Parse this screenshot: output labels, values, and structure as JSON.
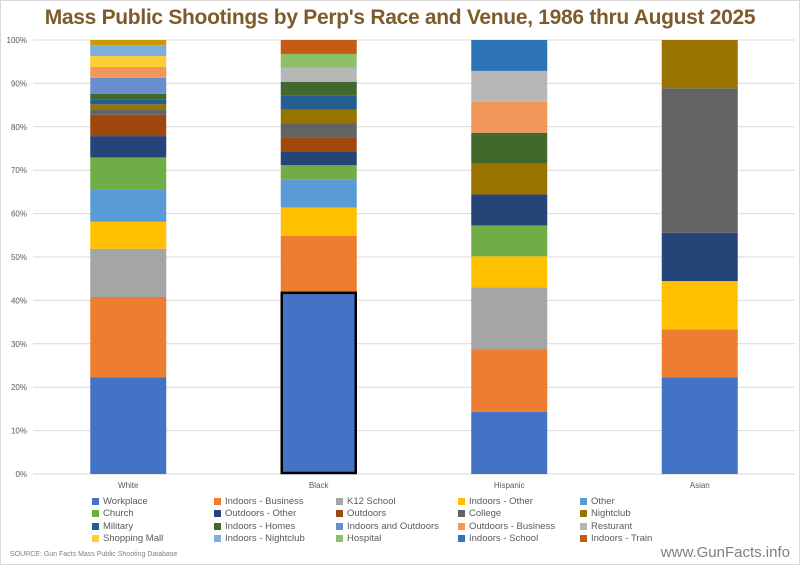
{
  "page": {
    "source_note": "SOURCE:  Gun Facts Mass Public Shooting Database",
    "website": "www.GunFacts.info"
  },
  "chart_data": {
    "type": "bar",
    "stacked": "percent",
    "title": "Mass Public Shootings by Perp's Race and Venue, 1986 thru August 2025",
    "xlabel": "",
    "ylabel": "",
    "ylim": [
      0,
      100
    ],
    "y_ticks": [
      "0%",
      "10%",
      "20%",
      "30%",
      "40%",
      "50%",
      "60%",
      "70%",
      "80%",
      "90%",
      "100%"
    ],
    "categories": [
      "White",
      "Black",
      "Hispanic",
      "Asian"
    ],
    "highlight": {
      "category": "Black",
      "series": "Workplace",
      "style": "black outline"
    },
    "grid": true,
    "legend_position": "bottom",
    "series": [
      {
        "name": "Workplace",
        "color": "#4472C4",
        "values": [
          22.2,
          41.9,
          14.3,
          22.2
        ]
      },
      {
        "name": "Indoors - Business",
        "color": "#ED7D31",
        "values": [
          18.5,
          12.9,
          14.3,
          11.1
        ]
      },
      {
        "name": "K12 School",
        "color": "#A5A5A5",
        "values": [
          11.1,
          0,
          14.3,
          0
        ]
      },
      {
        "name": "Indoors - Other",
        "color": "#FFC000",
        "values": [
          6.2,
          6.5,
          7.1,
          11.1
        ]
      },
      {
        "name": "Other",
        "color": "#5B9BD5",
        "values": [
          7.4,
          6.5,
          0,
          0
        ]
      },
      {
        "name": "Church",
        "color": "#70AD47",
        "values": [
          7.4,
          3.2,
          7.1,
          0
        ]
      },
      {
        "name": "Outdoors - Other",
        "color": "#264478",
        "values": [
          4.9,
          3.2,
          7.1,
          11.1
        ]
      },
      {
        "name": "Outdoors",
        "color": "#9E480E",
        "values": [
          4.9,
          3.2,
          0,
          0
        ]
      },
      {
        "name": "College",
        "color": "#636363",
        "values": [
          1.2,
          3.2,
          0,
          33.3
        ]
      },
      {
        "name": "Nightclub",
        "color": "#997300",
        "values": [
          1.2,
          3.2,
          7.1,
          11.1
        ]
      },
      {
        "name": "Military",
        "color": "#255E91",
        "values": [
          1.2,
          3.2,
          0,
          0
        ]
      },
      {
        "name": "Indoors - Homes",
        "color": "#43682B",
        "values": [
          1.2,
          3.2,
          7.1,
          0
        ]
      },
      {
        "name": "Indoors and Outdoors",
        "color": "#698ED0",
        "values": [
          3.7,
          0,
          0,
          0
        ]
      },
      {
        "name": "Outdoors - Business",
        "color": "#F1975A",
        "values": [
          2.5,
          0,
          7.1,
          0
        ]
      },
      {
        "name": "Resturant",
        "color": "#B7B7B7",
        "values": [
          0,
          3.2,
          7.1,
          0
        ]
      },
      {
        "name": "Shopping Mall",
        "color": "#FFCD33",
        "values": [
          2.5,
          0,
          0,
          0
        ]
      },
      {
        "name": "Indoors - Nightclub",
        "color": "#7CAFDD",
        "values": [
          2.5,
          0,
          0,
          0
        ]
      },
      {
        "name": "Hospital",
        "color": "#8CC168",
        "values": [
          0,
          3.2,
          0,
          0
        ]
      },
      {
        "name": "Indoors - School",
        "color": "#2E75B6",
        "values": [
          0,
          0,
          7.1,
          0
        ]
      },
      {
        "name": "Indoors - Train",
        "color": "#C55A11",
        "values": [
          0,
          3.2,
          0,
          0
        ]
      },
      {
        "name": "",
        "color": "#C99A06",
        "values": [
          1.2,
          0,
          0,
          0
        ],
        "in_legend": false
      }
    ]
  }
}
